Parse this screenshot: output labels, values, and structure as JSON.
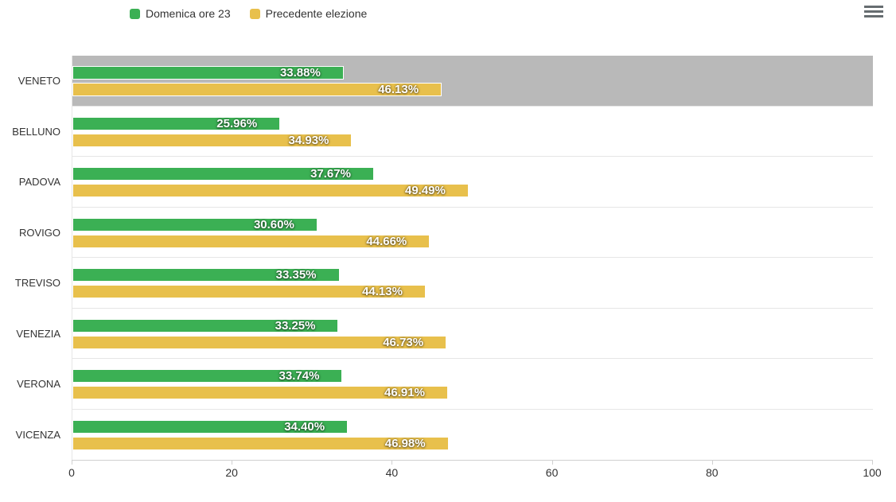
{
  "legend": {
    "items": [
      {
        "label": "Domenica ore 23",
        "color": "#3BB054"
      },
      {
        "label": "Precedente elezione",
        "color": "#E8C04C"
      }
    ]
  },
  "toolbar": {
    "menu_icon": "hamburger-menu"
  },
  "chart_data": {
    "type": "bar",
    "orientation": "horizontal",
    "title": "",
    "categories": [
      "VENETO",
      "BELLUNO",
      "PADOVA",
      "ROVIGO",
      "TREVISO",
      "VENEZIA",
      "VERONA",
      "VICENZA"
    ],
    "series": [
      {
        "name": "Domenica ore 23",
        "color": "#3BB054",
        "values": [
          33.88,
          25.96,
          37.67,
          30.6,
          33.35,
          33.25,
          33.74,
          34.4
        ],
        "value_labels": [
          "33.88%",
          "25.96%",
          "37.67%",
          "30.60%",
          "33.35%",
          "33.25%",
          "33.74%",
          "34.40%"
        ]
      },
      {
        "name": "Precedente elezione",
        "color": "#E8C04C",
        "values": [
          46.13,
          34.93,
          49.49,
          44.66,
          44.13,
          46.73,
          46.91,
          46.98
        ],
        "value_labels": [
          "46.13%",
          "34.93%",
          "49.49%",
          "44.66%",
          "44.13%",
          "46.73%",
          "46.91%",
          "46.98%"
        ]
      }
    ],
    "xlim": [
      0,
      100
    ],
    "x_ticks": [
      0,
      20,
      40,
      60,
      80,
      100
    ],
    "x_tick_labels": [
      "0",
      "20",
      "40",
      "60",
      "80",
      "100"
    ],
    "grid": "horizontal-category-separators-only",
    "legend_position": "top-left",
    "highlight": {
      "category": "VENETO",
      "color": "#B9B9B9"
    },
    "value_label_style": "white-bold-inside-right",
    "colors": {
      "separator": "#E6E6E6",
      "axis": "#D0D0D0",
      "text": "#333333"
    }
  }
}
